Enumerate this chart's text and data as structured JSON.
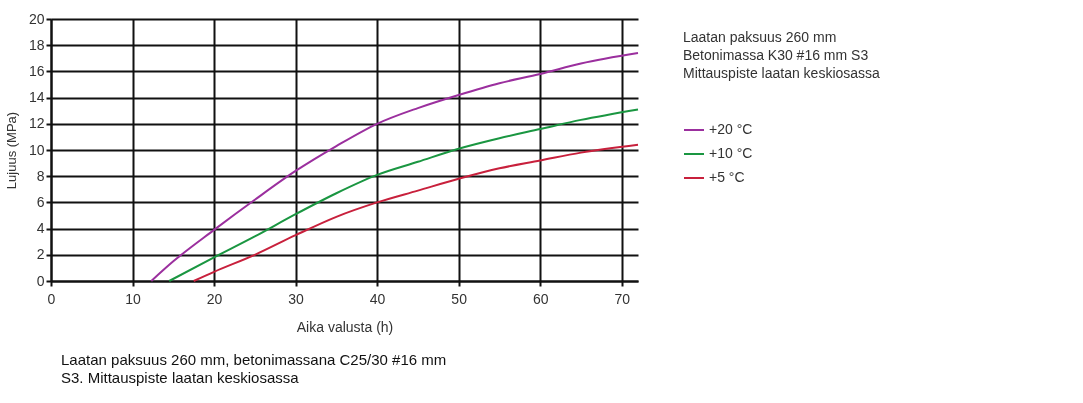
{
  "chart_data": {
    "type": "line",
    "xlabel": "Aika valusta (h)",
    "ylabel": "Lujuus (MPa)",
    "xlim": [
      0,
      72
    ],
    "xticks": [
      0,
      10,
      20,
      30,
      40,
      50,
      60,
      70
    ],
    "ylim": [
      0,
      20
    ],
    "yticks": [
      0,
      2,
      4,
      6,
      8,
      10,
      12,
      14,
      16,
      18,
      20
    ],
    "grid": true,
    "legend": "right",
    "line_style": "solid",
    "marker": "none",
    "annotations": [
      "Laatan paksuus 260 mm\nBetonimassa K30 #16 mm S3\nMittauspiste laatan keskiosassa",
      "Laatan paksuus 260 mm, betonimassana C25/30 #16 mm\nS3. Mittauspiste laatan keskiosassa"
    ],
    "series": [
      {
        "name": "+20 °C",
        "color": "#9b2f9e",
        "x": [
          12.3,
          15,
          20,
          25,
          30,
          35,
          40,
          45,
          50,
          55,
          60,
          65,
          72
        ],
        "values": [
          0,
          1.5,
          3.9,
          6.2,
          8.4,
          10.3,
          12,
          13.2,
          14.2,
          15.1,
          15.8,
          16.6,
          17.4
        ]
      },
      {
        "name": "+10 °C",
        "color": "#1a9641",
        "x": [
          14.5,
          20,
          25,
          30,
          35,
          40,
          45,
          50,
          55,
          60,
          65,
          72
        ],
        "values": [
          0,
          1.8,
          3.4,
          5.1,
          6.7,
          8.1,
          9.1,
          10.1,
          10.9,
          11.6,
          12.3,
          13.1
        ]
      },
      {
        "name": "+5 °C",
        "color": "#c8203c",
        "x": [
          17.5,
          20,
          25,
          30,
          35,
          40,
          45,
          50,
          55,
          60,
          65,
          72
        ],
        "values": [
          0,
          0.7,
          2,
          3.5,
          4.9,
          6,
          6.9,
          7.8,
          8.6,
          9.2,
          9.8,
          10.4
        ]
      }
    ]
  }
}
